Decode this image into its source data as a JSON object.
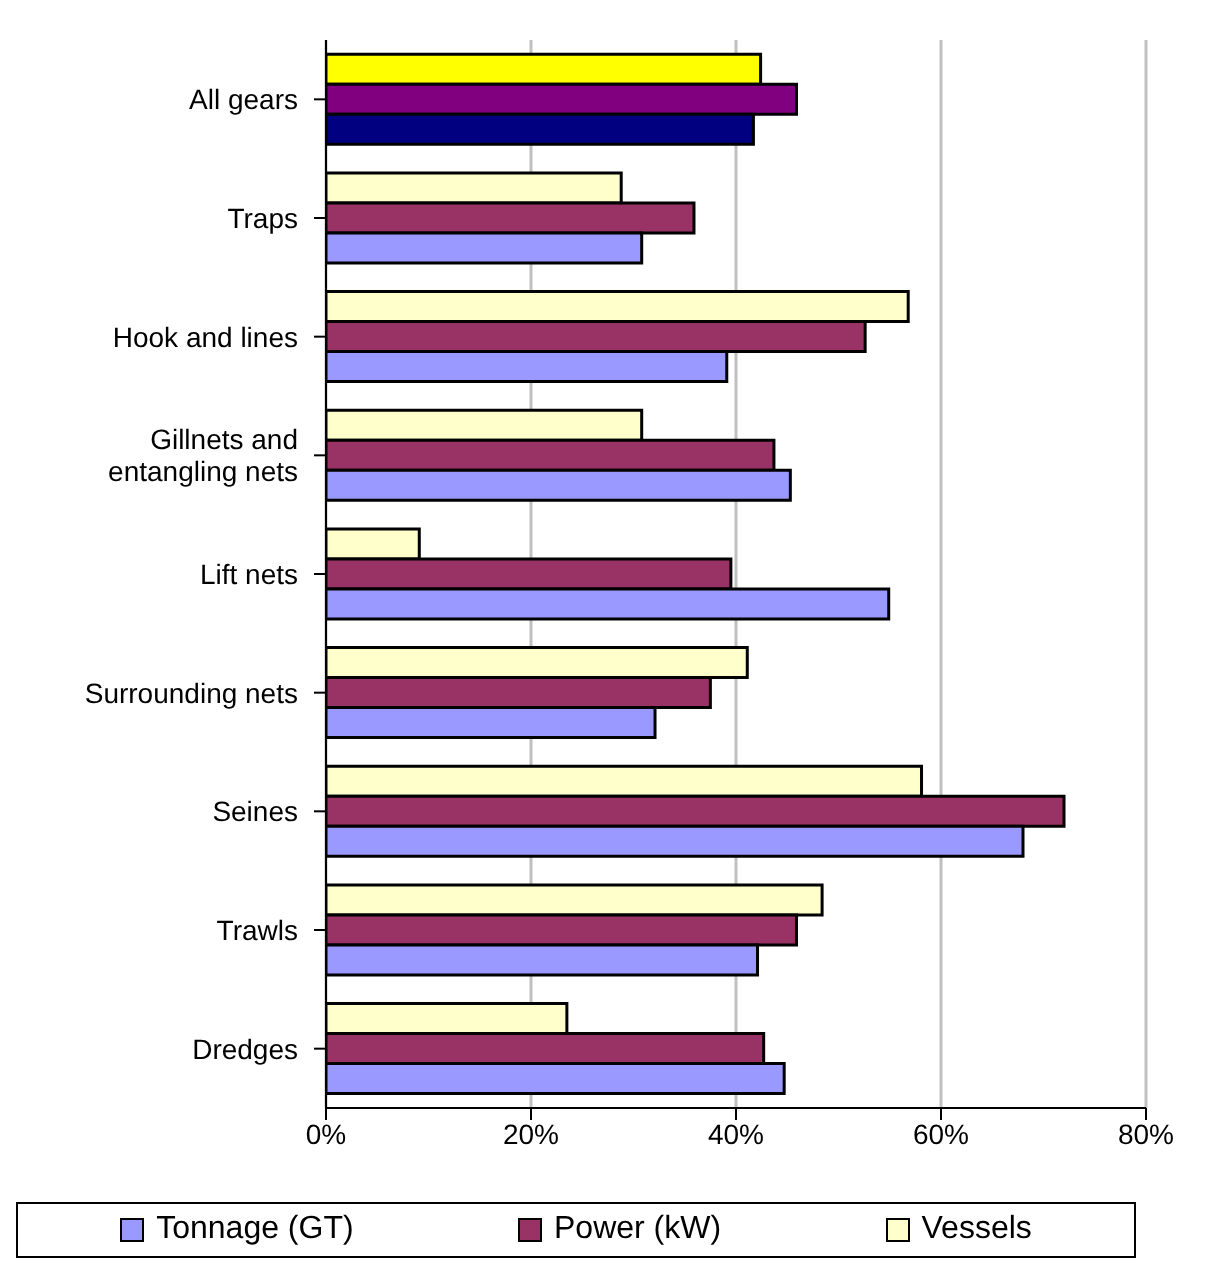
{
  "chart_data": {
    "type": "bar",
    "orientation": "horizontal",
    "categories": [
      "All gears",
      "Traps",
      "Hook and lines",
      "Gillnets and entangling nets",
      "Lift nets",
      "Surrounding nets",
      "Seines",
      "Trawls",
      "Dredges"
    ],
    "series": [
      {
        "name": "Tonnage (GT)",
        "color": "#9999ff",
        "colors": [
          "#000080",
          "#9999ff",
          "#9999ff",
          "#9999ff",
          "#9999ff",
          "#9999ff",
          "#9999ff",
          "#9999ff",
          "#9999ff"
        ],
        "values": [
          41.7,
          30.8,
          39.1,
          45.3,
          54.9,
          32.1,
          68.0,
          42.1,
          44.7
        ]
      },
      {
        "name": "Power (kW)",
        "color": "#993366",
        "colors": [
          "#800080",
          "#993366",
          "#993366",
          "#993366",
          "#993366",
          "#993366",
          "#993366",
          "#993366",
          "#993366"
        ],
        "values": [
          45.9,
          35.9,
          52.6,
          43.7,
          39.5,
          37.5,
          72.0,
          45.9,
          42.7
        ]
      },
      {
        "name": "Vessels",
        "color": "#ffffcc",
        "colors": [
          "#ffff00",
          "#ffffcc",
          "#ffffcc",
          "#ffffcc",
          "#ffffcc",
          "#ffffcc",
          "#ffffcc",
          "#ffffcc",
          "#ffffcc"
        ],
        "values": [
          42.4,
          28.8,
          56.8,
          30.8,
          9.1,
          41.1,
          58.1,
          48.4,
          23.5
        ]
      }
    ],
    "xlim": [
      0,
      80
    ],
    "xticks": [
      {
        "value": 0,
        "label": "0%"
      },
      {
        "value": 20,
        "label": "20%"
      },
      {
        "value": 40,
        "label": "40%"
      },
      {
        "value": 60,
        "label": "60%"
      },
      {
        "value": 80,
        "label": "80%"
      }
    ],
    "grid": "x",
    "legend": "bottom"
  }
}
